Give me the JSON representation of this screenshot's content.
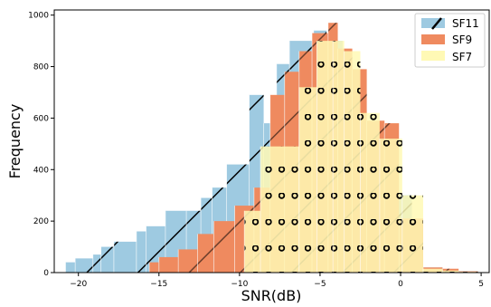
{
  "chart_data": {
    "type": "bar",
    "xlabel": "SNR(dB)",
    "ylabel": "Frequency",
    "xlim": [
      -21.5,
      5.5
    ],
    "ylim": [
      0,
      1020
    ],
    "xticks": [
      -20,
      -15,
      -10,
      -5,
      0,
      5
    ],
    "xtick_labels": [
      "−20",
      "−15",
      "−10",
      "−5",
      "0",
      "5"
    ],
    "yticks": [
      0,
      200,
      400,
      600,
      800,
      1000
    ],
    "ytick_labels": [
      "0",
      "200",
      "400",
      "600",
      "800",
      "1000"
    ],
    "legend_position": "top-right",
    "series": [
      {
        "name": "SF11",
        "color": "#9ecae1",
        "hatch": "diagonal-lines",
        "bins": [
          {
            "x0": -20.8,
            "x1": -20.2,
            "v": 40
          },
          {
            "x0": -20.2,
            "x1": -19.1,
            "v": 55
          },
          {
            "x0": -19.1,
            "x1": -18.6,
            "v": 70
          },
          {
            "x0": -18.6,
            "x1": -17.8,
            "v": 100
          },
          {
            "x0": -17.8,
            "x1": -16.4,
            "v": 120
          },
          {
            "x0": -16.4,
            "x1": -15.8,
            "v": 160
          },
          {
            "x0": -15.8,
            "x1": -14.6,
            "v": 180
          },
          {
            "x0": -14.6,
            "x1": -13.3,
            "v": 240
          },
          {
            "x0": -13.3,
            "x1": -12.4,
            "v": 240
          },
          {
            "x0": -12.4,
            "x1": -11.7,
            "v": 290
          },
          {
            "x0": -11.7,
            "x1": -10.8,
            "v": 330
          },
          {
            "x0": -10.8,
            "x1": -9.4,
            "v": 420
          },
          {
            "x0": -9.4,
            "x1": -8.5,
            "v": 690
          },
          {
            "x0": -8.5,
            "x1": -7.7,
            "v": 580
          },
          {
            "x0": -7.7,
            "x1": -6.9,
            "v": 810
          },
          {
            "x0": -6.9,
            "x1": -5.4,
            "v": 900
          },
          {
            "x0": -5.4,
            "x1": -4.6,
            "v": 940
          },
          {
            "x0": -4.6,
            "x1": -3.6,
            "v": 900
          },
          {
            "x0": -3.6,
            "x1": -2.3,
            "v": 780
          },
          {
            "x0": -2.3,
            "x1": -0.5,
            "v": 560
          },
          {
            "x0": -0.5,
            "x1": 0.7,
            "v": 300
          },
          {
            "x0": 0.7,
            "x1": 1.4,
            "v": 200
          },
          {
            "x0": 1.4,
            "x1": 2.6,
            "v": 20
          },
          {
            "x0": 2.6,
            "x1": 3.6,
            "v": 10
          },
          {
            "x0": 3.6,
            "x1": 4.8,
            "v": 5
          }
        ]
      },
      {
        "name": "SF9",
        "color": "#ef8a5f",
        "hatch": "diagonal-lines",
        "bins": [
          {
            "x0": -15.6,
            "x1": -15.0,
            "v": 40
          },
          {
            "x0": -15.0,
            "x1": -13.8,
            "v": 60
          },
          {
            "x0": -13.8,
            "x1": -12.6,
            "v": 90
          },
          {
            "x0": -12.6,
            "x1": -11.6,
            "v": 150
          },
          {
            "x0": -11.6,
            "x1": -10.3,
            "v": 200
          },
          {
            "x0": -10.3,
            "x1": -9.1,
            "v": 260
          },
          {
            "x0": -9.1,
            "x1": -8.1,
            "v": 330
          },
          {
            "x0": -8.1,
            "x1": -7.2,
            "v": 690
          },
          {
            "x0": -7.2,
            "x1": -6.3,
            "v": 780
          },
          {
            "x0": -6.3,
            "x1": -5.5,
            "v": 860
          },
          {
            "x0": -5.5,
            "x1": -4.5,
            "v": 930
          },
          {
            "x0": -4.5,
            "x1": -3.9,
            "v": 970
          },
          {
            "x0": -3.9,
            "x1": -3.0,
            "v": 870
          },
          {
            "x0": -3.0,
            "x1": -2.1,
            "v": 790
          },
          {
            "x0": -2.1,
            "x1": -1.0,
            "v": 590
          },
          {
            "x0": -1.0,
            "x1": -0.1,
            "v": 580
          },
          {
            "x0": -0.1,
            "x1": 1.4,
            "v": 210
          },
          {
            "x0": 1.4,
            "x1": 2.6,
            "v": 20
          },
          {
            "x0": 2.6,
            "x1": 3.6,
            "v": 15
          },
          {
            "x0": 3.6,
            "x1": 4.8,
            "v": 5
          }
        ]
      },
      {
        "name": "SF7",
        "color": "#fff9b5",
        "hatch": "circles",
        "bins": [
          {
            "x0": -9.7,
            "x1": -8.7,
            "v": 240
          },
          {
            "x0": -8.7,
            "x1": -6.3,
            "v": 490
          },
          {
            "x0": -6.3,
            "x1": -5.2,
            "v": 720
          },
          {
            "x0": -5.2,
            "x1": -4.2,
            "v": 900
          },
          {
            "x0": -4.2,
            "x1": -3.5,
            "v": 900
          },
          {
            "x0": -3.5,
            "x1": -2.5,
            "v": 860
          },
          {
            "x0": -2.5,
            "x1": -1.3,
            "v": 620
          },
          {
            "x0": -1.3,
            "x1": 0.1,
            "v": 520
          },
          {
            "x0": 0.1,
            "x1": 1.4,
            "v": 300
          },
          {
            "x0": 1.4,
            "x1": 2.6,
            "v": 15
          },
          {
            "x0": 2.6,
            "x1": 3.6,
            "v": 8
          },
          {
            "x0": 3.6,
            "x1": 4.8,
            "v": 3
          }
        ]
      }
    ]
  }
}
